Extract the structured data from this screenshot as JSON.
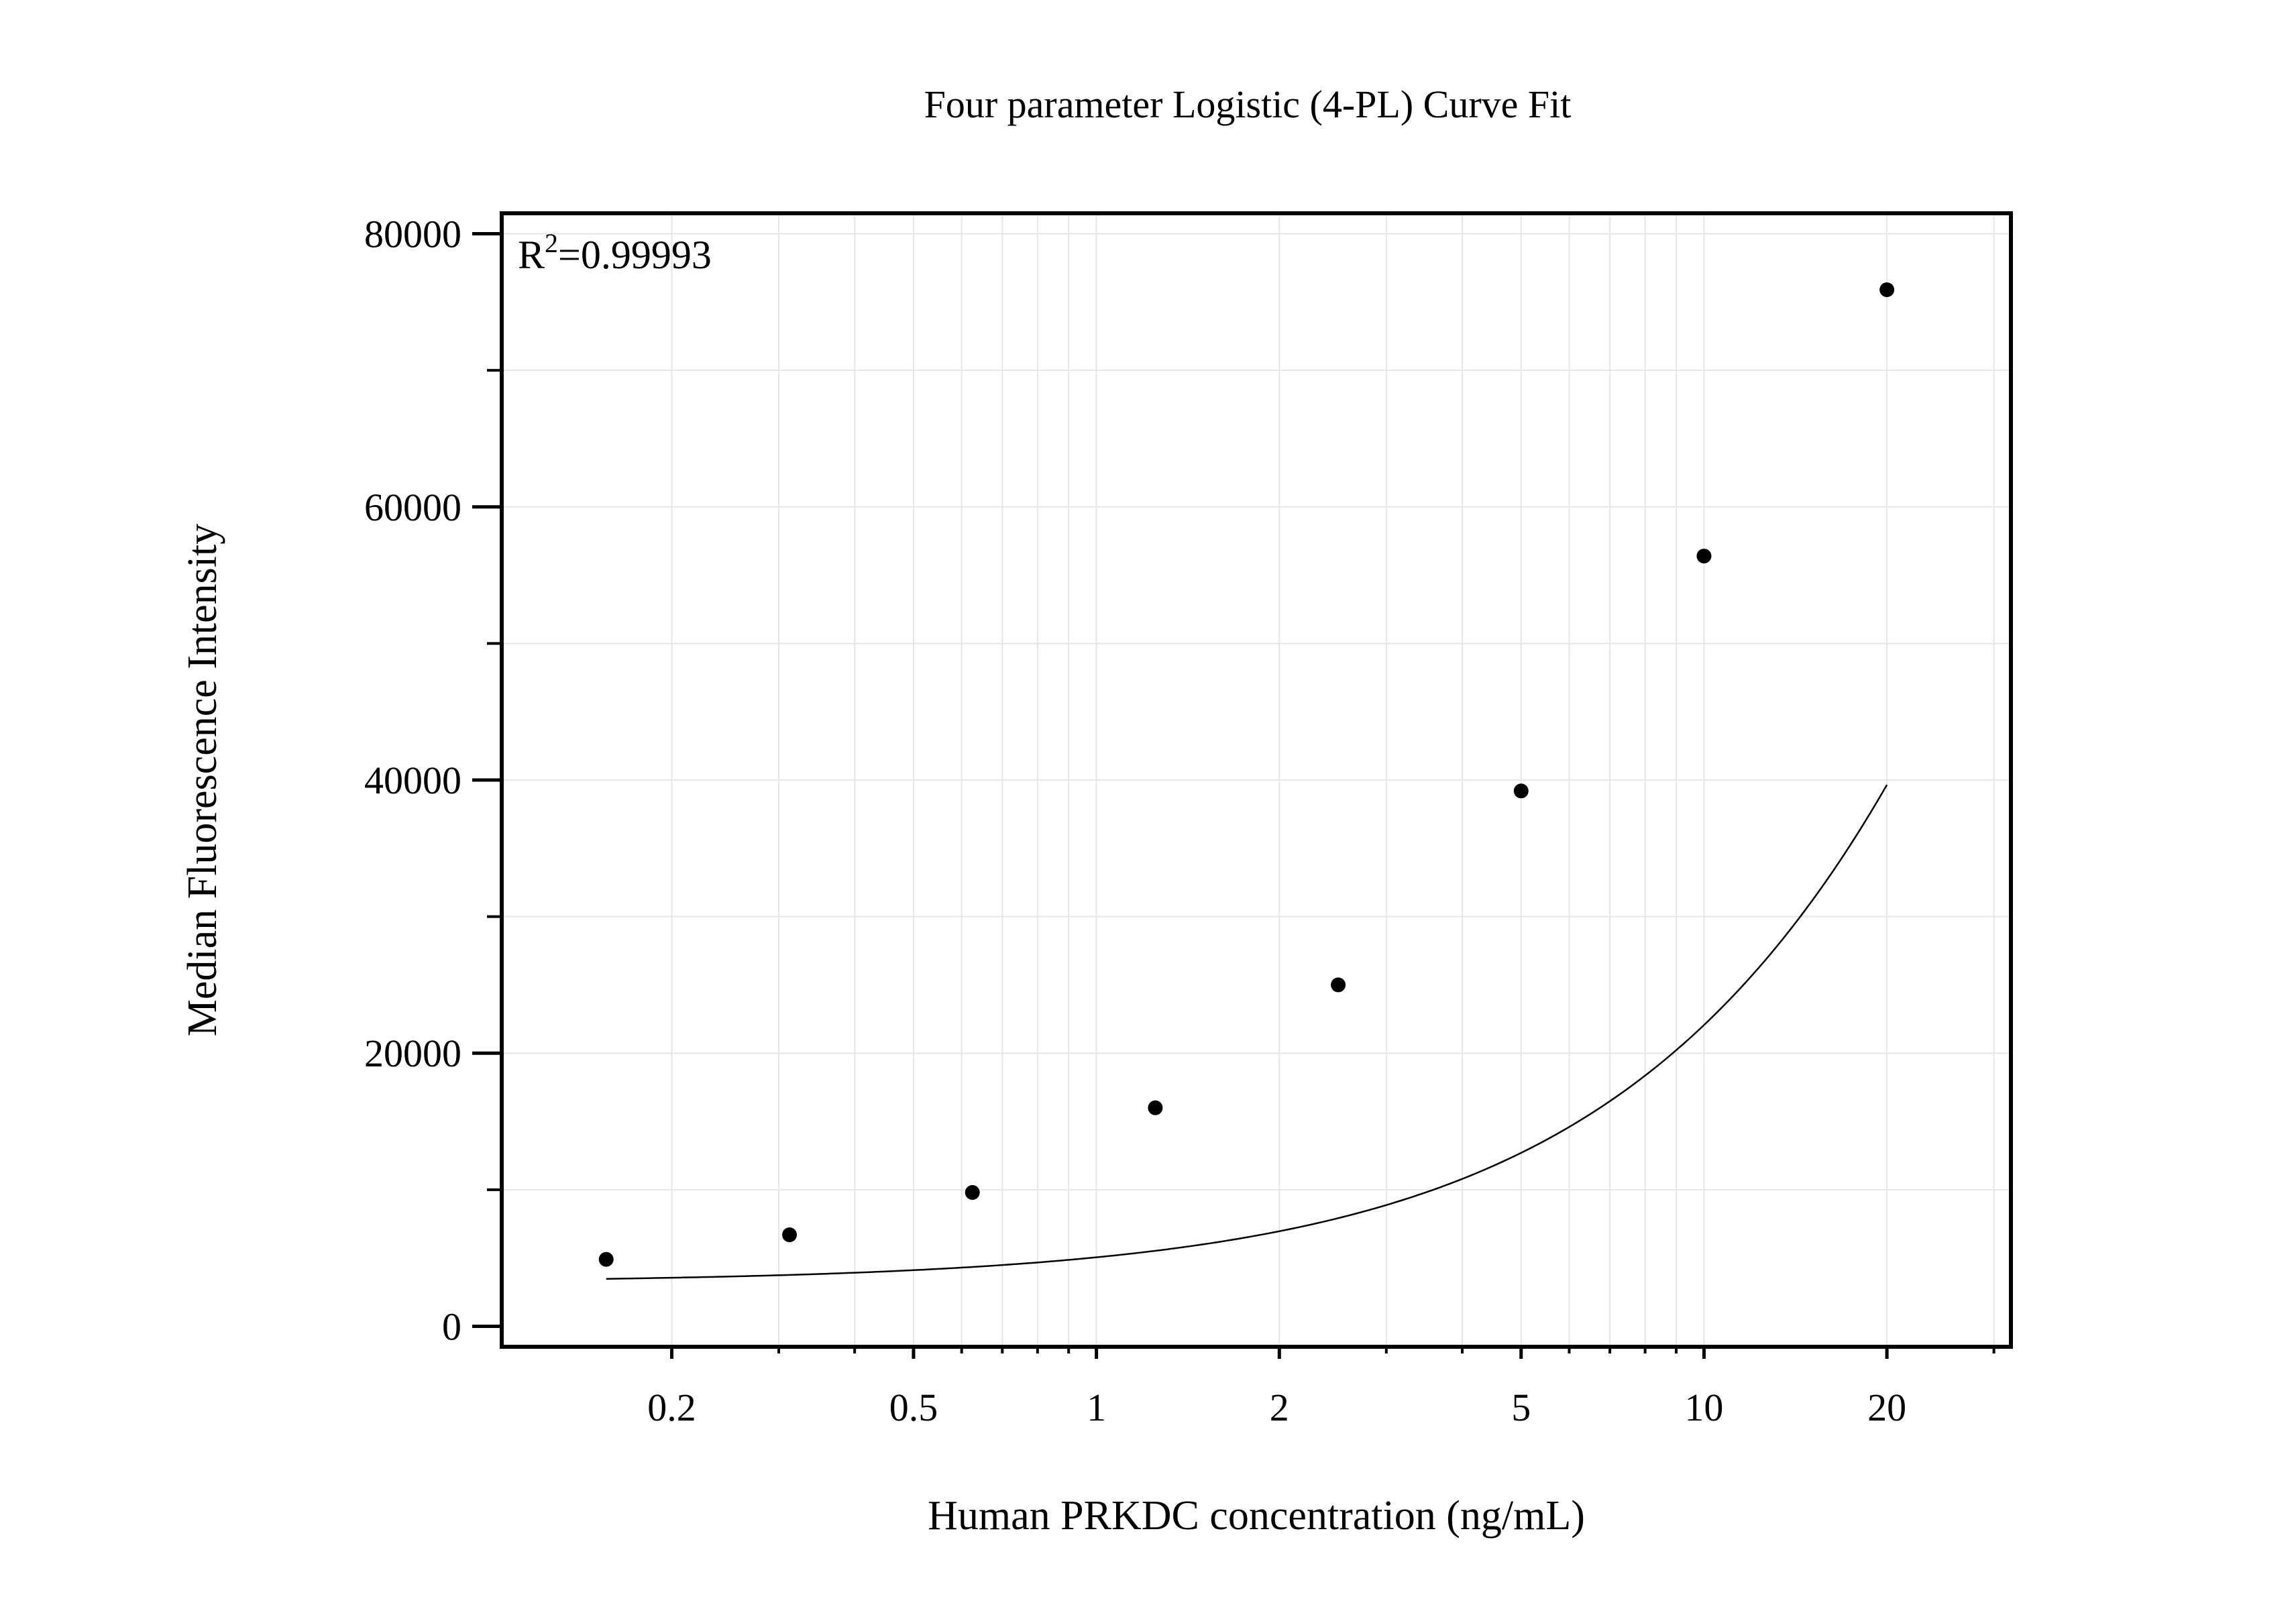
{
  "chart_data": {
    "type": "scatter",
    "title": "Four parameter Logistic (4-PL) Curve Fit",
    "xlabel": "Human PRKDC concentration (ng/mL)",
    "ylabel": "Median Fluorescence Intensity",
    "x_scale": "log",
    "xlim": [
      0.105,
      32
    ],
    "ylim": [
      -1500,
      81500
    ],
    "grid": true,
    "x_ticks": [
      0.2,
      0.5,
      1,
      2,
      5,
      10,
      20
    ],
    "x_tick_labels": [
      "0.2",
      "0.5",
      "1",
      "2",
      "5",
      "10",
      "20"
    ],
    "y_ticks": [
      0,
      20000,
      40000,
      60000,
      80000
    ],
    "y_tick_labels": [
      "0",
      "20000",
      "40000",
      "60000",
      "80000"
    ],
    "annotation": {
      "r2_prefix": "R",
      "r2_sup": "2",
      "r2_value": "=0.99993"
    },
    "series": [
      {
        "type": "scatter",
        "x": [
          0.156,
          0.3125,
          0.625,
          1.25,
          2.5,
          5,
          10,
          20
        ],
        "y": [
          4900,
          6700,
          9800,
          16000,
          25000,
          39200,
          56400,
          75900
        ]
      },
      {
        "type": "line",
        "fit": "4PL",
        "params": {
          "A": 3200,
          "B": 1.03,
          "C": 160,
          "D": 350000
        }
      }
    ],
    "colors": {
      "points": "#000000",
      "curve": "#000000",
      "grid": "#e6e6e6",
      "frame": "#000000"
    }
  }
}
